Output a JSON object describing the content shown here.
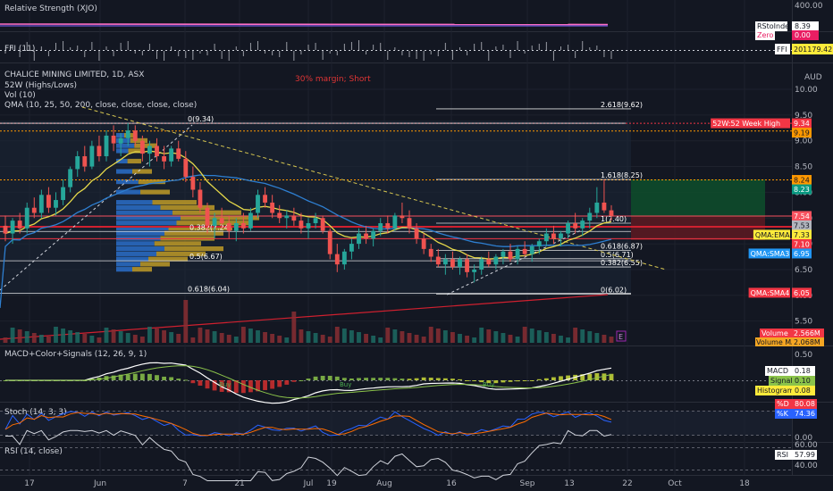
{
  "chart_data": [
    {
      "type": "line",
      "title": "Relative Strength (XJO)",
      "series": [
        {
          "name": "RStoIndex",
          "values": [
            8.39
          ]
        },
        {
          "name": "Zero",
          "values": [
            0.0
          ]
        }
      ],
      "values_display": [
        "8.39",
        "0.00"
      ],
      "ylim": [
        0,
        400
      ],
      "ytick": "400.00"
    },
    {
      "type": "bar",
      "title": "FFI (11)",
      "series": [
        {
          "name": "FFI",
          "values": [
            201179.42
          ]
        }
      ],
      "values_display": [
        "201179.42"
      ]
    },
    {
      "type": "candlestick",
      "title": "CHALICE MINING LIMITED, 1D, ASX",
      "currency": "AUD",
      "annotation": "30% margin; Short",
      "studies": [
        "52W (Highs/Lows)",
        "Vol (10)",
        "QMA (10, 25, 50, 200, close, close, close, close)"
      ],
      "ylim": [
        5.2,
        10.3
      ],
      "yticks": [
        "10.00",
        "9.50",
        "9.00",
        "8.50",
        "8.00",
        "7.50",
        "7.00",
        "6.50",
        "6.00",
        "5.50"
      ],
      "xticks": [
        "17",
        "Jun",
        "7",
        "21",
        "Jul",
        "19",
        "Aug",
        "16",
        "Sep",
        "13",
        "22",
        "Oct",
        "18"
      ],
      "candles": [
        [
          7.35,
          7.55,
          7.05,
          7.2
        ],
        [
          7.2,
          7.5,
          7.0,
          7.45
        ],
        [
          7.45,
          7.6,
          7.2,
          7.3
        ],
        [
          7.3,
          7.8,
          7.2,
          7.7
        ],
        [
          7.7,
          7.9,
          7.5,
          7.6
        ],
        [
          7.6,
          8.05,
          7.5,
          7.95
        ],
        [
          7.95,
          8.1,
          7.6,
          7.7
        ],
        [
          7.7,
          8.0,
          7.55,
          7.85
        ],
        [
          7.85,
          8.25,
          7.75,
          8.1
        ],
        [
          8.1,
          8.5,
          8.0,
          8.45
        ],
        [
          8.45,
          8.8,
          8.3,
          8.7
        ],
        [
          8.7,
          8.9,
          8.4,
          8.5
        ],
        [
          8.5,
          9.0,
          8.45,
          8.9
        ],
        [
          8.9,
          9.1,
          8.6,
          8.7
        ],
        [
          8.7,
          9.2,
          8.6,
          9.1
        ],
        [
          9.1,
          9.3,
          8.8,
          8.95
        ],
        [
          8.95,
          9.15,
          8.7,
          9.05
        ],
        [
          9.05,
          9.34,
          8.9,
          9.2
        ],
        [
          9.2,
          9.3,
          8.9,
          9.0
        ],
        [
          9.0,
          9.1,
          8.6,
          8.75
        ],
        [
          8.75,
          9.0,
          8.5,
          8.9
        ],
        [
          8.9,
          9.05,
          8.6,
          8.7
        ],
        [
          8.7,
          8.9,
          8.45,
          8.6
        ],
        [
          8.6,
          8.9,
          8.5,
          8.85
        ],
        [
          8.85,
          9.0,
          8.6,
          8.65
        ],
        [
          8.65,
          8.8,
          8.2,
          8.3
        ],
        [
          8.3,
          8.5,
          7.9,
          8.05
        ],
        [
          8.05,
          8.2,
          7.6,
          7.7
        ],
        [
          7.7,
          7.8,
          7.2,
          7.35
        ],
        [
          7.35,
          7.6,
          7.1,
          7.5
        ],
        [
          7.5,
          7.7,
          7.3,
          7.4
        ],
        [
          7.4,
          7.55,
          7.1,
          7.25
        ],
        [
          7.25,
          7.5,
          7.05,
          7.4
        ],
        [
          7.4,
          7.6,
          7.2,
          7.3
        ],
        [
          7.3,
          7.7,
          7.25,
          7.6
        ],
        [
          7.6,
          8.05,
          7.5,
          7.95
        ],
        [
          7.95,
          8.1,
          7.7,
          7.8
        ],
        [
          7.8,
          7.95,
          7.5,
          7.6
        ],
        [
          7.6,
          7.75,
          7.4,
          7.5
        ],
        [
          7.5,
          7.65,
          7.3,
          7.55
        ],
        [
          7.55,
          7.7,
          7.35,
          7.45
        ],
        [
          7.45,
          7.6,
          7.2,
          7.3
        ],
        [
          7.3,
          7.5,
          7.1,
          7.4
        ],
        [
          7.4,
          7.6,
          7.3,
          7.5
        ],
        [
          7.5,
          7.55,
          7.2,
          7.25
        ],
        [
          7.25,
          7.3,
          6.7,
          6.8
        ],
        [
          6.8,
          7.0,
          6.45,
          6.6
        ],
        [
          6.6,
          6.9,
          6.5,
          6.85
        ],
        [
          6.85,
          7.1,
          6.7,
          7.0
        ],
        [
          7.0,
          7.3,
          6.9,
          7.2
        ],
        [
          7.2,
          7.35,
          7.0,
          7.1
        ],
        [
          7.1,
          7.3,
          6.95,
          7.25
        ],
        [
          7.25,
          7.5,
          7.15,
          7.4
        ],
        [
          7.4,
          7.55,
          7.2,
          7.3
        ],
        [
          7.3,
          7.6,
          7.25,
          7.55
        ],
        [
          7.55,
          7.8,
          7.4,
          7.5
        ],
        [
          7.5,
          7.65,
          7.2,
          7.3
        ],
        [
          7.3,
          7.4,
          7.0,
          7.1
        ],
        [
          7.1,
          7.2,
          6.8,
          6.9
        ],
        [
          6.9,
          7.0,
          6.65,
          6.75
        ],
        [
          6.75,
          6.9,
          6.55,
          6.6
        ],
        [
          6.6,
          6.8,
          6.4,
          6.7
        ],
        [
          6.7,
          6.85,
          6.5,
          6.55
        ],
        [
          6.55,
          6.75,
          6.4,
          6.7
        ],
        [
          6.7,
          6.8,
          6.35,
          6.45
        ],
        [
          6.45,
          6.6,
          6.25,
          6.5
        ],
        [
          6.5,
          6.75,
          6.4,
          6.7
        ],
        [
          6.7,
          6.85,
          6.55,
          6.6
        ],
        [
          6.6,
          6.8,
          6.5,
          6.75
        ],
        [
          6.75,
          6.9,
          6.6,
          6.85
        ],
        [
          6.85,
          7.0,
          6.65,
          6.7
        ],
        [
          6.7,
          6.95,
          6.6,
          6.9
        ],
        [
          6.9,
          7.05,
          6.75,
          6.8
        ],
        [
          6.8,
          7.0,
          6.65,
          6.95
        ],
        [
          6.95,
          7.1,
          6.8,
          7.05
        ],
        [
          7.05,
          7.3,
          6.95,
          7.2
        ],
        [
          7.2,
          7.35,
          7.0,
          7.1
        ],
        [
          7.1,
          7.25,
          6.95,
          7.2
        ],
        [
          7.2,
          7.45,
          7.1,
          7.4
        ],
        [
          7.4,
          7.6,
          7.2,
          7.3
        ],
        [
          7.3,
          7.5,
          7.15,
          7.45
        ],
        [
          7.45,
          7.7,
          7.3,
          7.6
        ],
        [
          7.6,
          8.1,
          7.5,
          7.8
        ],
        [
          7.8,
          8.25,
          7.6,
          7.65
        ],
        [
          7.65,
          7.75,
          7.45,
          7.54
        ]
      ],
      "lines": {
        "QMA:EMA": 7.33,
        "QMA:SMA3": 6.95,
        "QMA:SMA4": 6.05,
        "52W:52 Week High": 9.34,
        "level_919": 9.19,
        "level_824": 8.24,
        "level_823": 8.23,
        "level_754": 7.54,
        "level_753": 7.53,
        "level_710": 7.1
      },
      "fib_labels": [
        "2.618(9.62)",
        "1.618(8.25)",
        "1(7.40)",
        "0.618(6.87)",
        "0.5(6.71)",
        "0.382(6.55)",
        "0(6.02)",
        "0(9.34)",
        "0.618(6.04)",
        "0.382(7.24)",
        "0.5(6.67)"
      ],
      "price_tags": [
        {
          "label": "52W:52 Week High",
          "value": "9.34",
          "color": "#f23645"
        },
        {
          "label": "",
          "value": "9.19",
          "color": "#ff9800"
        },
        {
          "label": "",
          "value": "8.24",
          "color": "#ff9800"
        },
        {
          "label": "",
          "value": "8.23",
          "color": "#089981"
        },
        {
          "label": "",
          "value": "7.54",
          "color": "#f7525f"
        },
        {
          "label": "",
          "value": "7.53",
          "color": "#b2b5be"
        },
        {
          "label": "QMA:EMA",
          "value": "7.33",
          "color": "#ffeb3b"
        },
        {
          "label": "",
          "value": "7.10",
          "color": "#f23645"
        },
        {
          "label": "QMA:SMA3",
          "value": "6.95",
          "color": "#2196f3"
        },
        {
          "label": "QMA:SMA4",
          "value": "6.05",
          "color": "#f23645"
        }
      ],
      "volume": {
        "label": "Volume",
        "value": "2.566M",
        "ma_label": "Volume MA",
        "ma_value": "2.068M"
      }
    },
    {
      "type": "bar",
      "title": "MACD+Color+Signals (12, 26, 9, 1)",
      "yticks": [
        "0.50",
        "0.00"
      ],
      "series": [
        {
          "name": "MACD",
          "values": [
            0.18
          ]
        },
        {
          "name": "Signal",
          "values": [
            0.1
          ]
        },
        {
          "name": "Histogram",
          "values": [
            0.08
          ]
        }
      ],
      "values_display": [
        "0.18",
        "0.10",
        "0.08"
      ],
      "markers": [
        "Buy",
        "Buy",
        "Buy"
      ]
    },
    {
      "type": "line",
      "title": "Stoch (14, 3, 3)",
      "yticks": [
        "0.00"
      ],
      "series": [
        {
          "name": "%D",
          "values": [
            80.08
          ]
        },
        {
          "name": "%K",
          "values": [
            74.36
          ]
        }
      ],
      "values_display": [
        "80.08",
        "74.36"
      ]
    },
    {
      "type": "line",
      "title": "RSI (14, close)",
      "yticks": [
        "60.00",
        "40.00"
      ],
      "series": [
        {
          "name": "RSI",
          "values": [
            57.99
          ]
        }
      ],
      "values_display": [
        "57.99"
      ]
    }
  ],
  "colors": {
    "background": "#131722",
    "up": "#26a69a",
    "down": "#ef5350",
    "grid": "#1e222d",
    "axis_text": "#b2b5be",
    "ema_yellow": "#e6d94a",
    "sma_blue": "#2e7fd1",
    "trend_red": "#d0202f",
    "dash_yellow": "#d6c650",
    "annotation_red": "#e03535"
  },
  "icons": {
    "e_marker": "letter-e-badge"
  }
}
